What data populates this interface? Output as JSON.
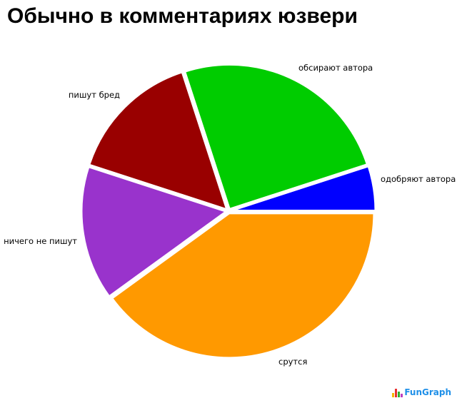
{
  "chart_data": {
    "type": "pie",
    "title": "Обычно в комментариях юзвери",
    "slices": [
      {
        "label": "одобряют автора",
        "value": 5,
        "color": "#0000ff"
      },
      {
        "label": "обсирают автора",
        "value": 25,
        "color": "#00cc00"
      },
      {
        "label": "пишут бред",
        "value": 15,
        "color": "#990000"
      },
      {
        "label": "ничего не пишут",
        "value": 15,
        "color": "#9933cc"
      },
      {
        "label": "срутся",
        "value": 40,
        "color": "#ff9900"
      }
    ],
    "start_angle": "3 o'clock, counterclockwise",
    "legend": "none, labels beside slices"
  },
  "branding": {
    "logo": "FunGraph"
  }
}
